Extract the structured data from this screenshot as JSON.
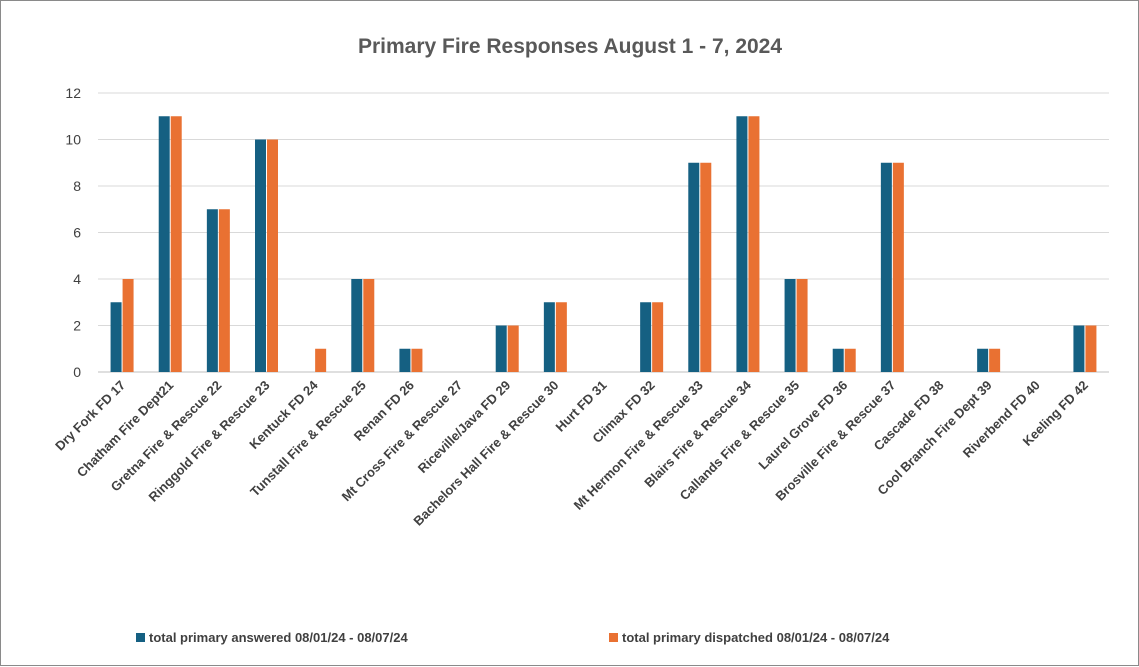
{
  "chart_data": {
    "type": "bar",
    "title": "Primary Fire Responses August 1 - 7, 2024",
    "xlabel": "",
    "ylabel": "",
    "ylim": [
      0,
      12
    ],
    "yticks": [
      0,
      2,
      4,
      6,
      8,
      10,
      12
    ],
    "grid": true,
    "legend_position": "bottom",
    "categories": [
      "Dry Fork FD  17",
      "Chatham Fire Dept21",
      "Gretna Fire & Rescue 22",
      "Ringgold Fire & Rescue 23",
      "Kentuck FD 24",
      "Tunstall Fire & Rescue 25",
      "Renan FD 26",
      "Mt Cross Fire & Rescue 27",
      "Riceville/Java FD 29",
      "Bachelors Hall Fire & Rescue 30",
      "Hurt FD 31",
      "Climax FD  32",
      "Mt Hermon Fire & Rescue 33",
      "Blairs Fire & Rescue 34",
      "Callands Fire & Rescue 35",
      "Laurel Grove FD 36",
      "Brosville Fire & Rescue 37",
      "Cascade FD 38",
      "Cool Branch Fire Dept 39",
      "Riverbend FD 40",
      "Keeling FD 42"
    ],
    "series": [
      {
        "name": "total primary answered 08/01/24 - 08/07/24",
        "color": "#156082",
        "values": [
          3,
          11,
          7,
          10,
          0,
          4,
          1,
          0,
          2,
          3,
          0,
          3,
          9,
          11,
          4,
          1,
          9,
          0,
          1,
          0,
          2
        ]
      },
      {
        "name": "total primary dispatched 08/01/24 - 08/07/24",
        "color": "#E97132",
        "values": [
          4,
          11,
          7,
          10,
          1,
          4,
          1,
          0,
          2,
          3,
          0,
          3,
          9,
          11,
          4,
          1,
          9,
          0,
          1,
          0,
          2
        ]
      }
    ],
    "gridline_color": "#d9d9d9",
    "axis_color": "#bfbfbf"
  }
}
